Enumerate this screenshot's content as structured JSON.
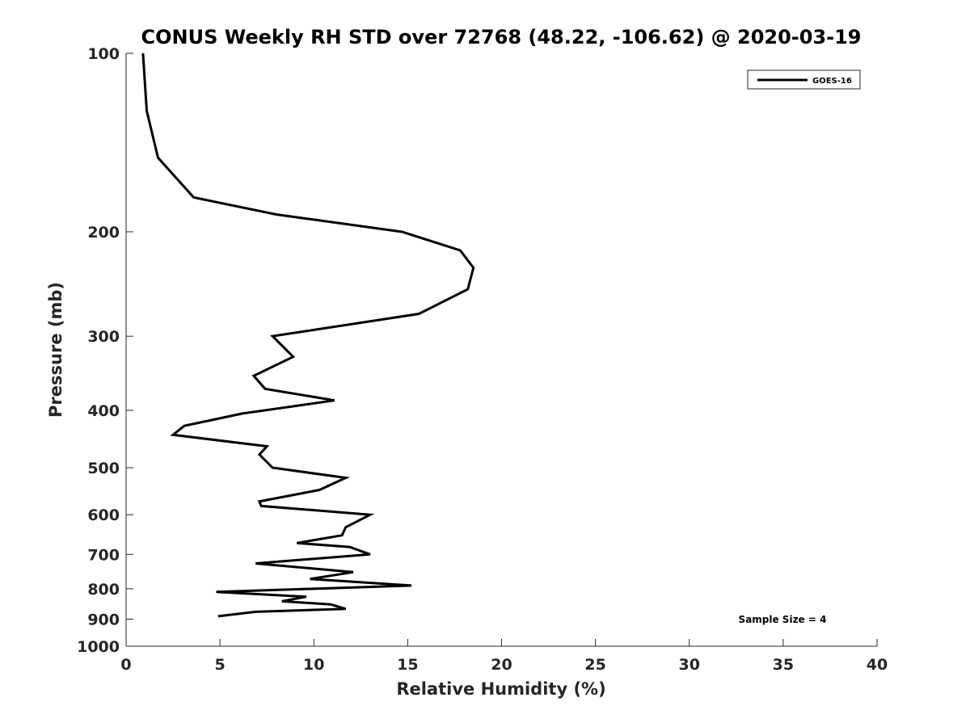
{
  "chart_data": {
    "type": "line",
    "title": "CONUS Weekly RH STD over 72768 (48.22, -106.62) @ 2020-03-19",
    "xlabel": "Relative Humidity (%)",
    "ylabel": "Pressure (mb)",
    "xlim": [
      0,
      40
    ],
    "ylim": [
      100,
      1000
    ],
    "yscale": "log",
    "y_reversed": true,
    "xticks": [
      0,
      5,
      10,
      15,
      20,
      25,
      30,
      35,
      40
    ],
    "yticks": [
      100,
      200,
      300,
      400,
      500,
      600,
      700,
      800,
      900,
      1000
    ],
    "legend": {
      "location": "top-right",
      "entries": [
        "GOES-16"
      ]
    },
    "annotation": "Sample Size = 4",
    "grid": false,
    "series": [
      {
        "name": "GOES-16",
        "color": "#000000",
        "points": [
          [
            0.9,
            100
          ],
          [
            1.1,
            125
          ],
          [
            1.7,
            150
          ],
          [
            3.6,
            175
          ],
          [
            8.0,
            187
          ],
          [
            14.7,
            200
          ],
          [
            17.8,
            215
          ],
          [
            18.5,
            230
          ],
          [
            18.2,
            250
          ],
          [
            15.6,
            275
          ],
          [
            7.8,
            300
          ],
          [
            8.9,
            325
          ],
          [
            6.8,
            350
          ],
          [
            7.4,
            368
          ],
          [
            11.1,
            385
          ],
          [
            6.2,
            405
          ],
          [
            3.1,
            425
          ],
          [
            2.5,
            440
          ],
          [
            7.5,
            460
          ],
          [
            7.1,
            475
          ],
          [
            7.8,
            500
          ],
          [
            11.7,
            520
          ],
          [
            10.3,
            545
          ],
          [
            7.1,
            570
          ],
          [
            7.2,
            580
          ],
          [
            13.0,
            600
          ],
          [
            11.7,
            630
          ],
          [
            11.5,
            650
          ],
          [
            9.1,
            670
          ],
          [
            11.9,
            680
          ],
          [
            13.0,
            700
          ],
          [
            6.9,
            725
          ],
          [
            12.1,
            750
          ],
          [
            9.8,
            770
          ],
          [
            15.2,
            790
          ],
          [
            4.8,
            810
          ],
          [
            9.6,
            825
          ],
          [
            8.3,
            840
          ],
          [
            10.9,
            850
          ],
          [
            11.7,
            865
          ],
          [
            6.9,
            875
          ],
          [
            4.9,
            890
          ]
        ]
      }
    ]
  }
}
